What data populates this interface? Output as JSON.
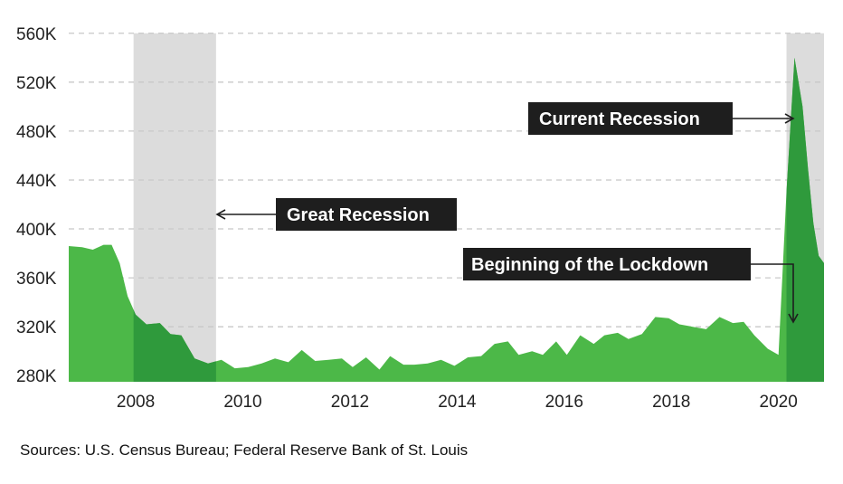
{
  "chart_data": {
    "type": "area",
    "ylim": [
      275000,
      565000
    ],
    "xlim": [
      2006.75,
      2020.85
    ],
    "y_ticks": [
      280000,
      320000,
      360000,
      400000,
      440000,
      480000,
      520000,
      560000
    ],
    "y_tick_labels": [
      "280K",
      "320K",
      "360K",
      "400K",
      "440K",
      "480K",
      "520K",
      "560K"
    ],
    "x_ticks": [
      2008,
      2010,
      2012,
      2014,
      2016,
      2018,
      2020
    ],
    "x_tick_labels": [
      "2008",
      "2010",
      "2012",
      "2014",
      "2016",
      "2018",
      "2020"
    ],
    "grid": "horizontal dashed",
    "series": [
      {
        "color": "#4cb848",
        "x": [
          2006.75,
          2007.0,
          2007.2,
          2007.4,
          2007.55,
          2007.7,
          2007.85,
          2008.0,
          2008.2,
          2008.45,
          2008.65,
          2008.85,
          2009.1,
          2009.35,
          2009.6,
          2009.85,
          2010.1,
          2010.35,
          2010.6,
          2010.85,
          2011.1,
          2011.35,
          2011.6,
          2011.85,
          2012.05,
          2012.3,
          2012.55,
          2012.75,
          2013.0,
          2013.2,
          2013.45,
          2013.7,
          2013.95,
          2014.2,
          2014.45,
          2014.7,
          2014.95,
          2015.15,
          2015.4,
          2015.6,
          2015.85,
          2016.05,
          2016.3,
          2016.55,
          2016.75,
          2017.0,
          2017.2,
          2017.45,
          2017.7,
          2017.95,
          2018.15,
          2018.4,
          2018.65,
          2018.9,
          2019.15,
          2019.35,
          2019.55,
          2019.8,
          2020.0,
          2020.15,
          2020.3,
          2020.45,
          2020.55,
          2020.65,
          2020.75,
          2020.85
        ],
        "values": [
          386000,
          385000,
          383000,
          387000,
          387000,
          372000,
          345000,
          330000,
          322000,
          323000,
          314000,
          313000,
          294000,
          290000,
          293000,
          286000,
          287000,
          290000,
          294000,
          291000,
          301000,
          292000,
          293000,
          294000,
          287000,
          295000,
          285000,
          296000,
          289000,
          289000,
          290000,
          293000,
          288000,
          295000,
          296000,
          306000,
          308000,
          297000,
          300000,
          297000,
          308000,
          297000,
          313000,
          306000,
          313000,
          315000,
          310000,
          314000,
          328000,
          327000,
          322000,
          320000,
          318000,
          328000,
          323000,
          324000,
          313000,
          302000,
          297000,
          430000,
          540000,
          500000,
          450000,
          405000,
          378000,
          372000
        ]
      }
    ],
    "shaded_periods": [
      {
        "name": "Great Recession",
        "start": 2007.96,
        "end": 2009.5
      },
      {
        "name": "Current Recession",
        "start": 2020.15,
        "end": 2020.85
      }
    ],
    "annotations": [
      {
        "text": "Great Recession",
        "target": "Great Recession shading"
      },
      {
        "text": "Current Recession",
        "target": "Current Recession shading"
      },
      {
        "text": "Beginning of the Lockdown",
        "target": "start of Current Recession"
      }
    ]
  },
  "source_text": "Sources: U.S. Census Bureau; Federal Reserve Bank of St. Louis",
  "colors": {
    "area": "#4cb848",
    "area_in_recession": "#2f9a3c",
    "shade": "#dcdcdc",
    "label_bg": "#1e1e1e",
    "grid": "#c8c8c8"
  }
}
